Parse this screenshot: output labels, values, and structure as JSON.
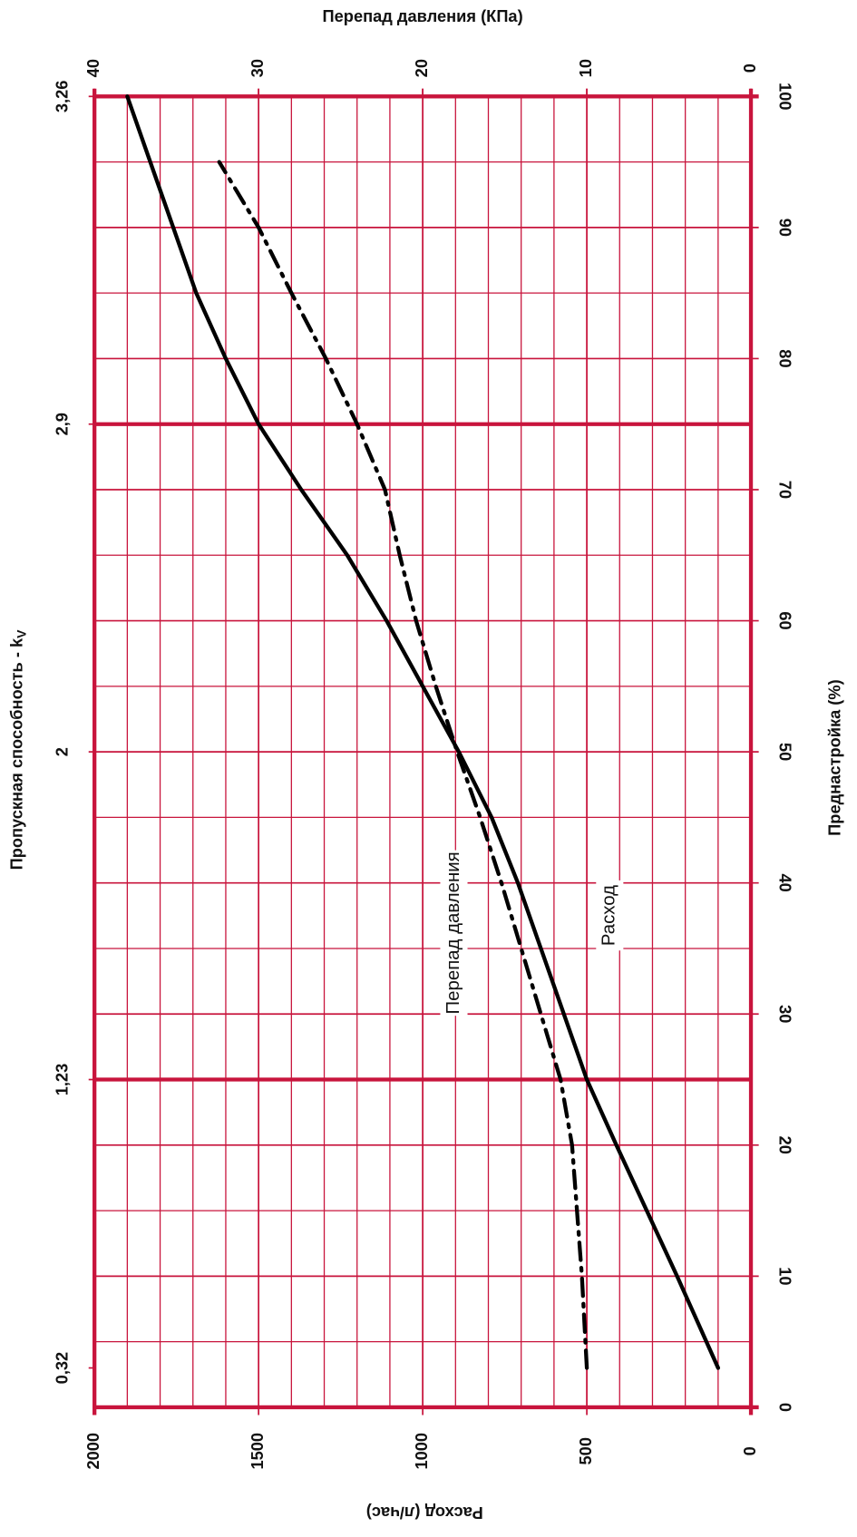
{
  "chart_data": {
    "type": "line",
    "x_label": "Преднастройка (%)",
    "flow_label": "Расход (л/час)",
    "pressure_label": "Перепад давления (КПа)",
    "kv_label": "Пропускная способность - k",
    "kv_label_sub": "V",
    "x": [
      3,
      10,
      20,
      25,
      30,
      35,
      40,
      45,
      50,
      55,
      60,
      65,
      70,
      75,
      80,
      85,
      90,
      95,
      100
    ],
    "xlim": [
      0,
      100
    ],
    "xticks": [
      0,
      10,
      20,
      30,
      40,
      50,
      60,
      70,
      80,
      90,
      100
    ],
    "xgrid": [
      5,
      15,
      25,
      35,
      45,
      55,
      65,
      75,
      85,
      95
    ],
    "thick_lines": [
      25,
      75
    ],
    "ylim": [
      0,
      2000
    ],
    "yticks": [
      0,
      500,
      1000,
      1500,
      2000
    ],
    "ygrid": [
      100,
      200,
      300,
      400,
      500,
      600,
      700,
      800,
      900,
      1000,
      1100,
      1200,
      1300,
      1400,
      1500,
      1600,
      1700,
      1800,
      1900
    ],
    "y2lim": [
      0,
      40
    ],
    "y2ticks": [
      0,
      10,
      20,
      30,
      40
    ],
    "kv_ticks": [
      {
        "value": 3,
        "label": "0,32"
      },
      {
        "value": 25,
        "label": "1,23"
      },
      {
        "value": 50,
        "label": "2"
      },
      {
        "value": 75,
        "label": "2,9"
      },
      {
        "value": 100,
        "label": "3,26"
      }
    ],
    "grid": true,
    "grid_color": "#c8143c",
    "series": [
      {
        "name": "Расход",
        "color": "#000000",
        "values": [
          100,
          225,
          410,
          500,
          570,
          640,
          710,
          790,
          890,
          1000,
          1110,
          1230,
          1370,
          1500,
          1600,
          1690,
          1760,
          1830,
          1900
        ]
      },
      {
        "name": "Перепад давления",
        "color": "#000000",
        "axis": "y2",
        "values": [
          10,
          10.3,
          10.9,
          11.6,
          12.8,
          14,
          15.2,
          16.5,
          17.9,
          19.2,
          20.4,
          21.4,
          22.3,
          24,
          25.9,
          28,
          30,
          32.4,
          null
        ]
      }
    ]
  }
}
